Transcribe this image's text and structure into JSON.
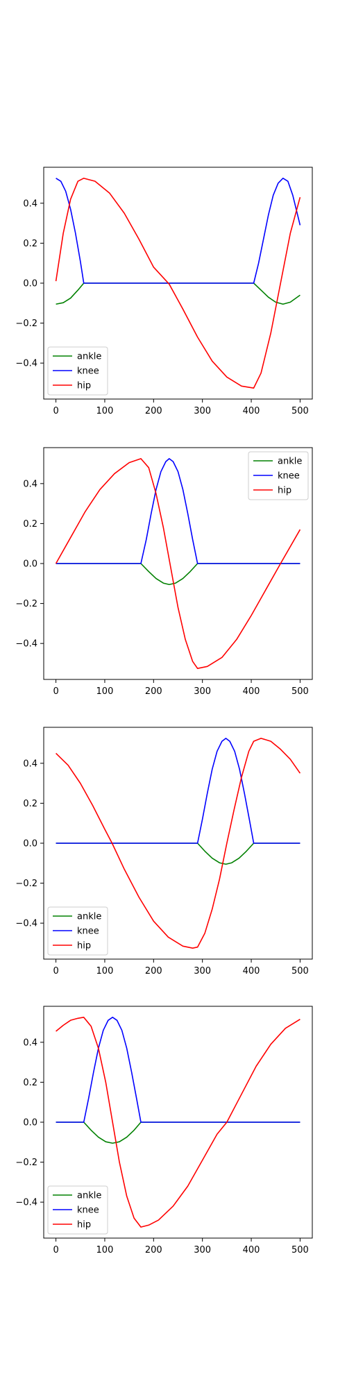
{
  "chart_data": [
    {
      "type": "line",
      "x_ticks": [
        0,
        100,
        200,
        300,
        400,
        500
      ],
      "y_ticks": [
        0.4,
        0.2,
        0.0,
        -0.2,
        -0.4
      ],
      "y_tick_labels": [
        "0.4",
        "0.2",
        "0.0",
        "−0.2",
        "−0.4"
      ],
      "xlim": [
        -25,
        525
      ],
      "ylim": [
        -0.58,
        0.58
      ],
      "legend_position": "lower-left",
      "series": [
        {
          "name": "ankle",
          "color": "#008000",
          "x": [
            0,
            15,
            30,
            45,
            57,
            100,
            200,
            300,
            405,
            420,
            435,
            450,
            465,
            480,
            500
          ],
          "y": [
            -0.105,
            -0.098,
            -0.075,
            -0.035,
            0.0,
            0.0,
            0.0,
            0.0,
            0.0,
            -0.035,
            -0.07,
            -0.095,
            -0.105,
            -0.095,
            -0.06
          ]
        },
        {
          "name": "knee",
          "color": "#0000ff",
          "x": [
            0,
            10,
            20,
            30,
            40,
            50,
            57,
            100,
            200,
            300,
            405,
            415,
            425,
            435,
            445,
            455,
            465,
            475,
            485,
            495,
            500
          ],
          "y": [
            0.525,
            0.51,
            0.46,
            0.37,
            0.25,
            0.11,
            0.0,
            0.0,
            0.0,
            0.0,
            0.0,
            0.1,
            0.22,
            0.34,
            0.44,
            0.5,
            0.525,
            0.51,
            0.44,
            0.34,
            0.29
          ]
        },
        {
          "name": "hip",
          "color": "#ff0000",
          "x": [
            0,
            15,
            30,
            45,
            57,
            80,
            110,
            140,
            170,
            200,
            232,
            260,
            290,
            320,
            350,
            380,
            405,
            420,
            440,
            460,
            480,
            500
          ],
          "y": [
            0.01,
            0.25,
            0.42,
            0.51,
            0.525,
            0.51,
            0.45,
            0.35,
            0.22,
            0.08,
            -0.005,
            -0.13,
            -0.27,
            -0.39,
            -0.47,
            -0.515,
            -0.525,
            -0.45,
            -0.25,
            0.0,
            0.25,
            0.43
          ]
        }
      ]
    },
    {
      "type": "line",
      "x_ticks": [
        0,
        100,
        200,
        300,
        400,
        500
      ],
      "y_ticks": [
        0.4,
        0.2,
        0.0,
        -0.2,
        -0.4
      ],
      "y_tick_labels": [
        "0.4",
        "0.2",
        "0.0",
        "−0.2",
        "−0.4"
      ],
      "xlim": [
        -25,
        525
      ],
      "ylim": [
        -0.58,
        0.58
      ],
      "legend_position": "upper-right",
      "series": [
        {
          "name": "ankle",
          "color": "#008000",
          "x": [
            0,
            100,
            174,
            190,
            205,
            220,
            232,
            245,
            260,
            275,
            290,
            400,
            500
          ],
          "y": [
            0.0,
            0.0,
            0.0,
            -0.04,
            -0.075,
            -0.098,
            -0.105,
            -0.098,
            -0.075,
            -0.04,
            0.0,
            0.0,
            0.0
          ]
        },
        {
          "name": "knee",
          "color": "#0000ff",
          "x": [
            0,
            100,
            174,
            185,
            195,
            205,
            215,
            225,
            232,
            240,
            250,
            260,
            270,
            280,
            290,
            400,
            500
          ],
          "y": [
            0.0,
            0.0,
            0.0,
            0.12,
            0.25,
            0.37,
            0.46,
            0.51,
            0.525,
            0.51,
            0.46,
            0.37,
            0.25,
            0.12,
            0.0,
            0.0,
            0.0
          ]
        },
        {
          "name": "hip",
          "color": "#ff0000",
          "x": [
            0,
            30,
            60,
            90,
            120,
            150,
            174,
            190,
            205,
            220,
            235,
            250,
            265,
            280,
            290,
            310,
            340,
            370,
            400,
            430,
            460,
            500
          ],
          "y": [
            0.0,
            0.13,
            0.26,
            0.37,
            0.45,
            0.505,
            0.525,
            0.48,
            0.35,
            0.18,
            -0.02,
            -0.22,
            -0.38,
            -0.49,
            -0.525,
            -0.515,
            -0.47,
            -0.38,
            -0.26,
            -0.13,
            0.0,
            0.17
          ]
        }
      ]
    },
    {
      "type": "line",
      "x_ticks": [
        0,
        100,
        200,
        300,
        400,
        500
      ],
      "y_ticks": [
        0.4,
        0.2,
        0.0,
        -0.2,
        -0.4
      ],
      "y_tick_labels": [
        "0.4",
        "0.2",
        "0.0",
        "−0.2",
        "−0.4"
      ],
      "xlim": [
        -25,
        525
      ],
      "ylim": [
        -0.58,
        0.58
      ],
      "legend_position": "lower-left",
      "series": [
        {
          "name": "ankle",
          "color": "#008000",
          "x": [
            0,
            100,
            200,
            290,
            305,
            320,
            335,
            348,
            360,
            375,
            390,
            405,
            450,
            500
          ],
          "y": [
            0.0,
            0.0,
            0.0,
            0.0,
            -0.04,
            -0.075,
            -0.098,
            -0.105,
            -0.098,
            -0.075,
            -0.04,
            0.0,
            0.0,
            0.0
          ]
        },
        {
          "name": "knee",
          "color": "#0000ff",
          "x": [
            0,
            100,
            200,
            290,
            300,
            310,
            320,
            330,
            340,
            348,
            356,
            366,
            376,
            386,
            396,
            405,
            450,
            500
          ],
          "y": [
            0.0,
            0.0,
            0.0,
            0.0,
            0.12,
            0.25,
            0.37,
            0.46,
            0.51,
            0.525,
            0.51,
            0.46,
            0.37,
            0.25,
            0.12,
            0.0,
            0.0,
            0.0
          ]
        },
        {
          "name": "hip",
          "color": "#ff0000",
          "x": [
            0,
            25,
            50,
            75,
            100,
            115,
            140,
            170,
            200,
            230,
            260,
            280,
            290,
            305,
            320,
            335,
            350,
            365,
            380,
            395,
            405,
            420,
            440,
            460,
            480,
            500
          ],
          "y": [
            0.45,
            0.39,
            0.3,
            0.19,
            0.07,
            0.0,
            -0.13,
            -0.27,
            -0.39,
            -0.47,
            -0.515,
            -0.525,
            -0.52,
            -0.45,
            -0.33,
            -0.18,
            0.0,
            0.17,
            0.33,
            0.46,
            0.51,
            0.525,
            0.51,
            0.47,
            0.42,
            0.35
          ]
        }
      ]
    },
    {
      "type": "line",
      "x_ticks": [
        0,
        100,
        200,
        300,
        400,
        500
      ],
      "y_ticks": [
        0.4,
        0.2,
        0.0,
        -0.2,
        -0.4
      ],
      "y_tick_labels": [
        "0.4",
        "0.2",
        "0.0",
        "−0.2",
        "−0.4"
      ],
      "xlim": [
        -25,
        525
      ],
      "ylim": [
        -0.58,
        0.58
      ],
      "legend_position": "lower-left",
      "series": [
        {
          "name": "ankle",
          "color": "#008000",
          "x": [
            0,
            30,
            57,
            72,
            87,
            102,
            116,
            130,
            145,
            160,
            174,
            250,
            350,
            500
          ],
          "y": [
            0.0,
            0.0,
            0.0,
            -0.04,
            -0.075,
            -0.098,
            -0.105,
            -0.098,
            -0.075,
            -0.04,
            0.0,
            0.0,
            0.0,
            0.0
          ]
        },
        {
          "name": "knee",
          "color": "#0000ff",
          "x": [
            0,
            30,
            57,
            67,
            77,
            87,
            97,
            107,
            116,
            125,
            135,
            145,
            155,
            165,
            174,
            250,
            350,
            500
          ],
          "y": [
            0.0,
            0.0,
            0.0,
            0.12,
            0.25,
            0.37,
            0.46,
            0.51,
            0.525,
            0.51,
            0.46,
            0.37,
            0.25,
            0.12,
            0.0,
            0.0,
            0.0,
            0.0
          ]
        },
        {
          "name": "hip",
          "color": "#ff0000",
          "x": [
            0,
            15,
            30,
            45,
            57,
            72,
            87,
            102,
            116,
            130,
            145,
            160,
            174,
            190,
            210,
            240,
            270,
            300,
            330,
            350,
            380,
            410,
            440,
            470,
            500
          ],
          "y": [
            0.455,
            0.485,
            0.51,
            0.52,
            0.525,
            0.48,
            0.37,
            0.2,
            0.0,
            -0.2,
            -0.37,
            -0.48,
            -0.525,
            -0.515,
            -0.49,
            -0.42,
            -0.32,
            -0.19,
            -0.06,
            0.0,
            0.14,
            0.28,
            0.39,
            0.47,
            0.515
          ]
        }
      ]
    }
  ]
}
